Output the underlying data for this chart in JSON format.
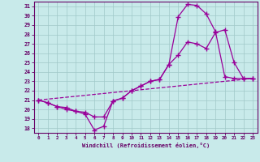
{
  "title": "",
  "xlabel": "Windchill (Refroidissement éolien,°C)",
  "bg_color": "#c8eaea",
  "line_color": "#990099",
  "xlim": [
    -0.5,
    23.5
  ],
  "ylim": [
    17.5,
    31.5
  ],
  "yticks": [
    18,
    19,
    20,
    21,
    22,
    23,
    24,
    25,
    26,
    27,
    28,
    29,
    30,
    31
  ],
  "xticks": [
    0,
    1,
    2,
    3,
    4,
    5,
    6,
    7,
    8,
    9,
    10,
    11,
    12,
    13,
    14,
    15,
    16,
    17,
    18,
    19,
    20,
    21,
    22,
    23
  ],
  "line1_x": [
    0,
    1,
    2,
    3,
    4,
    5,
    6,
    7,
    8,
    9,
    10,
    11,
    12,
    13,
    14,
    15,
    16,
    17,
    18,
    19,
    20,
    21,
    22,
    23
  ],
  "line1_y": [
    21.0,
    20.7,
    20.3,
    20.0,
    19.8,
    19.5,
    17.8,
    18.2,
    20.9,
    21.2,
    22.0,
    22.5,
    23.0,
    23.2,
    24.8,
    29.9,
    31.2,
    31.1,
    30.2,
    28.3,
    23.5,
    23.3,
    23.3,
    23.3
  ],
  "line2_x": [
    0,
    1,
    2,
    3,
    4,
    5,
    6,
    7,
    8,
    9,
    10,
    11,
    12,
    13,
    14,
    15,
    16,
    17,
    18,
    19,
    20,
    21,
    22,
    23
  ],
  "line2_y": [
    21.0,
    20.7,
    20.3,
    20.2,
    19.8,
    19.7,
    19.2,
    19.2,
    20.9,
    21.2,
    22.0,
    22.5,
    23.0,
    23.2,
    24.8,
    25.8,
    27.2,
    27.0,
    26.5,
    28.2,
    28.5,
    25.0,
    23.3,
    23.3
  ],
  "line3_x": [
    0,
    23
  ],
  "line3_y": [
    21.0,
    23.3
  ],
  "grid_color": "#a0c8c8"
}
